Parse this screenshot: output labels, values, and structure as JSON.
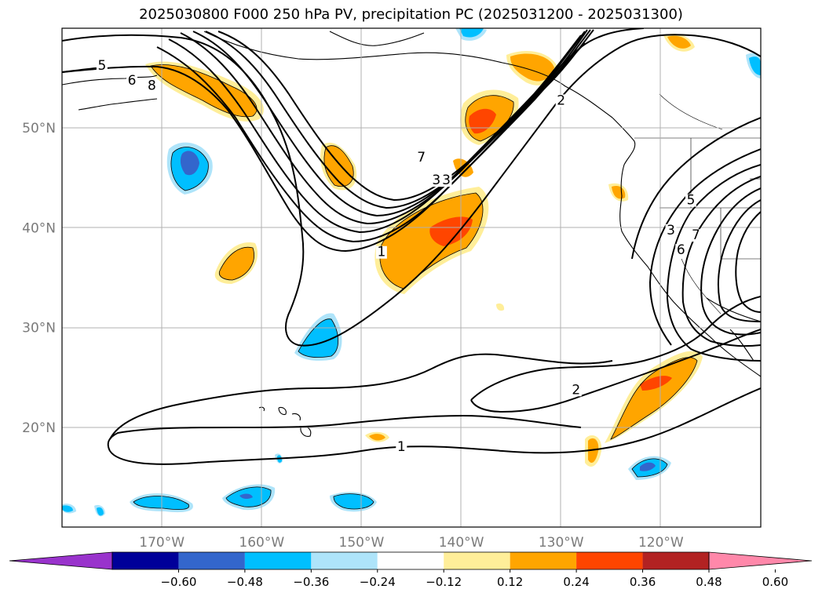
{
  "title": "2025030800 F000 250 hPa PV, precipitation PC (2025031200 - 2025031300)",
  "map": {
    "lon_range": [
      -180,
      -110
    ],
    "lat_range": [
      10,
      60
    ],
    "lat_ticks": [
      {
        "value": 20,
        "label": "20°N"
      },
      {
        "value": 30,
        "label": "30°N"
      },
      {
        "value": 40,
        "label": "40°N"
      },
      {
        "value": 50,
        "label": "50°N"
      }
    ],
    "lon_ticks": [
      {
        "value": -170,
        "label": "170°W"
      },
      {
        "value": -160,
        "label": "160°W"
      },
      {
        "value": -150,
        "label": "150°W"
      },
      {
        "value": -140,
        "label": "140°W"
      },
      {
        "value": -130,
        "label": "130°W"
      },
      {
        "value": -120,
        "label": "120°W"
      }
    ],
    "grid": true,
    "contour_labels": [
      {
        "lon": -176,
        "lat": 56,
        "text": "5"
      },
      {
        "lon": -173,
        "lat": 54.5,
        "text": "6"
      },
      {
        "lon": -171,
        "lat": 54,
        "text": "8"
      },
      {
        "lon": -144,
        "lat": 46.8,
        "text": "7"
      },
      {
        "lon": -142.5,
        "lat": 44.5,
        "text": "3"
      },
      {
        "lon": -141.5,
        "lat": 44.5,
        "text": "3"
      },
      {
        "lon": -148,
        "lat": 37.3,
        "text": "1"
      },
      {
        "lon": -130,
        "lat": 52.5,
        "text": "2"
      },
      {
        "lon": -128.5,
        "lat": 23.5,
        "text": "2"
      },
      {
        "lon": -146,
        "lat": 17.8,
        "text": "1"
      },
      {
        "lon": -119,
        "lat": 39.5,
        "text": "3"
      },
      {
        "lon": -118,
        "lat": 37.5,
        "text": "6"
      },
      {
        "lon": -117,
        "lat": 42.5,
        "text": "5"
      },
      {
        "lon": -116.5,
        "lat": 39,
        "text": "7"
      }
    ]
  },
  "colorbar": {
    "colors": [
      "#9933cc",
      "#000099",
      "#3366cc",
      "#00bfff",
      "#aee4fa",
      "#ffffff",
      "#ffee99",
      "#ffa500",
      "#ff4500",
      "#b22222",
      "#ff88aa"
    ],
    "labels": [
      "−0.60",
      "−0.48",
      "−0.36",
      "−0.24",
      "−0.12",
      "0.12",
      "0.24",
      "0.36",
      "0.48",
      "0.60"
    ]
  },
  "chart_data": {
    "type": "map-contour",
    "title": "2025030800 F000 250 hPa PV, precipitation PC (2025031200 - 2025031300)",
    "fields": [
      "250 hPa PV (contours)",
      "precipitation PC (shaded)"
    ],
    "pv_contour_levels_labeled": [
      1,
      2,
      3,
      5,
      6,
      7,
      8
    ],
    "precip_levels": [
      -0.6,
      -0.48,
      -0.36,
      -0.24,
      -0.12,
      0.12,
      0.24,
      0.36,
      0.48,
      0.6
    ]
  }
}
